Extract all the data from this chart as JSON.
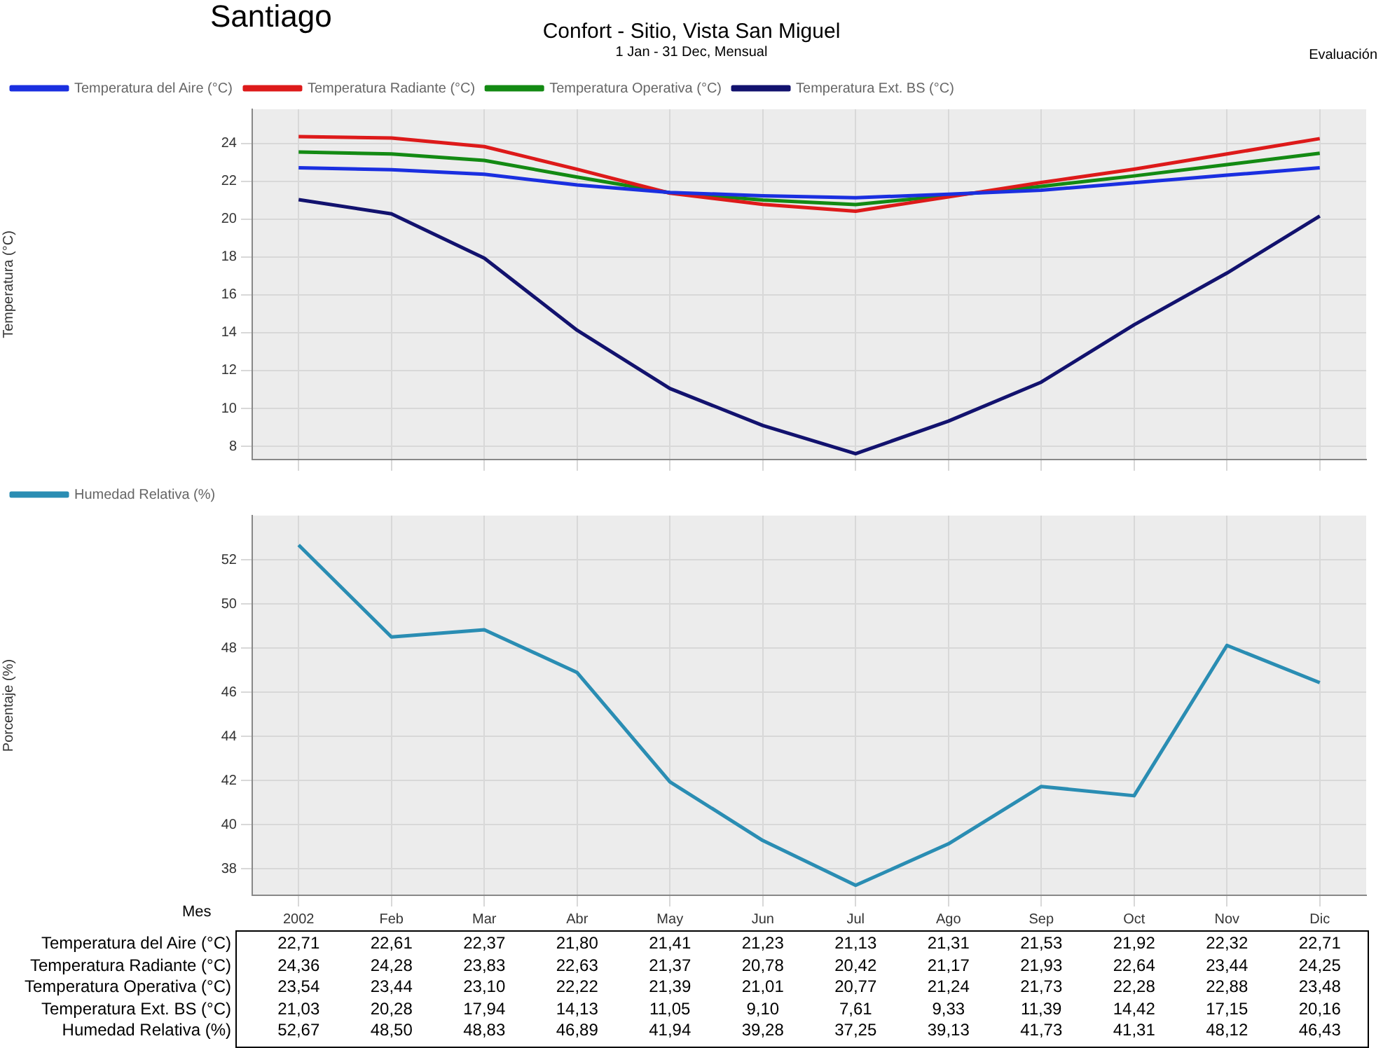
{
  "chart_data": [
    {
      "type": "line",
      "title": "Confort - Sitio, Vista San Miguel",
      "subtitle": "1 Jan - 31 Dec, Mensual",
      "ylabel": "Temperatura (°C)",
      "annotations": [
        "Santiago",
        "Evaluación"
      ],
      "categories": [
        null,
        null,
        null,
        null,
        null,
        null,
        null,
        null,
        null,
        null,
        null,
        null
      ],
      "series": [
        {
          "name": "Temperatura del Aire (°C)",
          "color": "#1a2fe0",
          "values": [
            22.71,
            22.61,
            22.37,
            21.8,
            21.41,
            21.23,
            21.13,
            21.31,
            21.53,
            21.92,
            22.32,
            22.71
          ],
          "value_labels": [
            "22,71",
            "22,61",
            "22,37",
            "21,80",
            "21,41",
            "21,23",
            "21,13",
            "21,31",
            "21,53",
            "21,92",
            "22,32",
            "22,71"
          ]
        },
        {
          "name": "Temperatura Radiante (°C)",
          "color": "#dd1a1a",
          "values": [
            24.36,
            24.28,
            23.83,
            22.63,
            21.37,
            20.78,
            20.42,
            21.17,
            21.93,
            22.64,
            23.44,
            24.25
          ],
          "value_labels": [
            "24,36",
            "24,28",
            "23,83",
            "22,63",
            "21,37",
            "20,78",
            "20,42",
            "21,17",
            "21,93",
            "22,64",
            "23,44",
            "24,25"
          ]
        },
        {
          "name": "Temperatura Operativa (°C)",
          "color": "#138a13",
          "values": [
            23.54,
            23.44,
            23.1,
            22.22,
            21.39,
            21.01,
            20.77,
            21.24,
            21.73,
            22.28,
            22.88,
            23.48
          ],
          "value_labels": [
            "23,54",
            "23,44",
            "23,10",
            "22,22",
            "21,39",
            "21,01",
            "20,77",
            "21,24",
            "21,73",
            "22,28",
            "22,88",
            "23,48"
          ]
        },
        {
          "name": "Temperatura Ext. BS (°C)",
          "color": "#12126e",
          "values": [
            21.03,
            20.28,
            17.94,
            14.13,
            11.05,
            9.1,
            7.61,
            9.33,
            11.39,
            14.42,
            17.15,
            20.16
          ],
          "value_labels": [
            "21,03",
            "20,28",
            "17,94",
            "14,13",
            "11,05",
            "9,10",
            "7,61",
            "9,33",
            "11,39",
            "14,42",
            "17,15",
            "20,16"
          ]
        }
      ],
      "ylim": [
        7.3,
        25.8
      ],
      "yticks": [
        8,
        10,
        12,
        14,
        16,
        18,
        20,
        22,
        24
      ],
      "grid": true,
      "legend": "top",
      "marker": "none",
      "tick_labels": "y"
    },
    {
      "type": "line",
      "xlabel": "Mes",
      "ylabel": "Porcentaje (%)",
      "categories": [
        "2002",
        "Feb",
        "Mar",
        "Abr",
        "May",
        "Jun",
        "Jul",
        "Ago",
        "Sep",
        "Oct",
        "Nov",
        "Dic"
      ],
      "series": [
        {
          "name": "Humedad Relativa (%)",
          "color": "#2a8db3",
          "values": [
            52.67,
            48.5,
            48.83,
            46.89,
            41.94,
            39.28,
            37.25,
            39.13,
            41.73,
            41.31,
            48.12,
            46.43
          ],
          "value_labels": [
            "52,67",
            "48,50",
            "48,83",
            "46,89",
            "41,94",
            "39,28",
            "37,25",
            "39,13",
            "41,73",
            "41,31",
            "48,12",
            "46,43"
          ]
        }
      ],
      "ylim": [
        36.8,
        54
      ],
      "yticks": [
        38,
        40,
        42,
        44,
        46,
        48,
        50,
        52
      ],
      "grid": true,
      "legend": "top",
      "marker": "none"
    }
  ]
}
